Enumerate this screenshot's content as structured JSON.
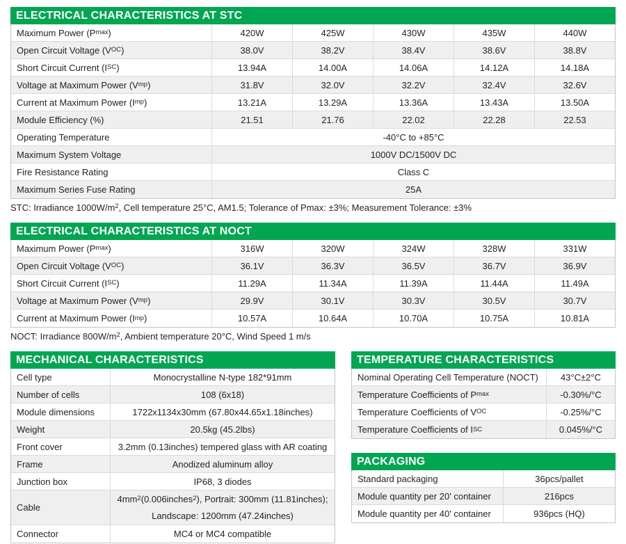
{
  "colors": {
    "header_bg": "#00a651",
    "header_text": "#ffffff",
    "stripe": "#efefef",
    "border": "#c4c4c4",
    "text": "#232323"
  },
  "stc": {
    "title": "ELECTRICAL CHARACTERISTICS AT STC",
    "rows": [
      {
        "label": "Maximum Power (P_{max})",
        "values": [
          "420W",
          "425W",
          "430W",
          "435W",
          "440W"
        ]
      },
      {
        "label": "Open Circuit Voltage (V_{OC})",
        "values": [
          "38.0V",
          "38.2V",
          "38.4V",
          "38.6V",
          "38.8V"
        ]
      },
      {
        "label": "Short Circuit Current (I_{SC})",
        "values": [
          "13.94A",
          "14.00A",
          "14.06A",
          "14.12A",
          "14.18A"
        ]
      },
      {
        "label": "Voltage at Maximum Power (V_{mp})",
        "values": [
          "31.8V",
          "32.0V",
          "32.2V",
          "32.4V",
          "32.6V"
        ]
      },
      {
        "label": "Current at Maximum Power (I_{mp})",
        "values": [
          "13.21A",
          "13.29A",
          "13.36A",
          "13.43A",
          "13.50A"
        ]
      },
      {
        "label": "Module Efficiency (%)",
        "values": [
          "21.51",
          "21.76",
          "22.02",
          "22.28",
          "22.53"
        ]
      }
    ],
    "span_rows": [
      {
        "label": "Operating Temperature",
        "value": "-40°C to +85°C"
      },
      {
        "label": "Maximum System Voltage",
        "value": "1000V DC/1500V DC"
      },
      {
        "label": "Fire Resistance Rating",
        "value": "Class C"
      },
      {
        "label": "Maximum Series Fuse Rating",
        "value": "25A"
      }
    ],
    "note": "STC: Irradiance 1000W/m^{2}, Cell temperature 25°C, AM1.5; Tolerance of Pmax: ±3%; Measurement Tolerance: ±3%"
  },
  "noct": {
    "title": "ELECTRICAL CHARACTERISTICS AT NOCT",
    "rows": [
      {
        "label": "Maximum Power (P_{max})",
        "values": [
          "316W",
          "320W",
          "324W",
          "328W",
          "331W"
        ]
      },
      {
        "label": "Open Circuit Voltage (V_{OC})",
        "values": [
          "36.1V",
          "36.3V",
          "36.5V",
          "36.7V",
          "36.9V"
        ]
      },
      {
        "label": "Short Circuit Current (I_{SC})",
        "values": [
          "11.29A",
          "11.34A",
          "11.39A",
          "11.44A",
          "11.49A"
        ]
      },
      {
        "label": "Voltage at Maximum Power (V_{mp})",
        "values": [
          "29.9V",
          "30.1V",
          "30.3V",
          "30.5V",
          "30.7V"
        ]
      },
      {
        "label": "Current at Maximum Power (I_{mp})",
        "values": [
          "10.57A",
          "10.64A",
          "10.70A",
          "10.75A",
          "10.81A"
        ]
      }
    ],
    "note": "NOCT: Irradiance 800W/m^{2}, Ambient temperature 20°C, Wind Speed 1 m/s"
  },
  "mechanical": {
    "title": "MECHANICAL CHARACTERISTICS",
    "rows": [
      {
        "label": "Cell type",
        "value": "Monocrystalline N-type 182*91mm"
      },
      {
        "label": "Number of cells",
        "value": "108 (6x18)"
      },
      {
        "label": "Module dimensions",
        "value": "1722x1134x30mm (67.80x44.65x1.18inches)"
      },
      {
        "label": "Weight",
        "value": "20.5kg (45.2lbs)"
      },
      {
        "label": "Front cover",
        "value": "3.2mm (0.13inches) tempered glass with AR coating"
      },
      {
        "label": "Frame",
        "value": "Anodized aluminum alloy"
      },
      {
        "label": "Junction box",
        "value": "IP68, 3 diodes"
      },
      {
        "label": "Cable",
        "value": "4mm^{2} (0.006inches^{2}), Portrait: 300mm (11.81inches);",
        "value2": "Landscape: 1200mm (47.24inches)"
      },
      {
        "label": "Connector",
        "value": "MC4 or MC4 compatible"
      }
    ]
  },
  "temperature": {
    "title": "TEMPERATURE CHARACTERISTICS",
    "rows": [
      {
        "label": "Nominal Operating Cell Temperature (NOCT)",
        "value": "43°C±2°C"
      },
      {
        "label": "Temperature Coefficients of P_{max}",
        "value": "-0.30%/°C"
      },
      {
        "label": "Temperature Coefficients of V_{OC}",
        "value": "-0.25%/°C"
      },
      {
        "label": "Temperature Coefficients of I_{SC}",
        "value": "0.045%/°C"
      }
    ]
  },
  "packaging": {
    "title": "PACKAGING",
    "rows": [
      {
        "label": "Standard packaging",
        "value": "36pcs/pallet"
      },
      {
        "label": "Module quantity per 20' container",
        "value": "216pcs"
      },
      {
        "label": "Module quantity per 40' container",
        "value": "936pcs (HQ)"
      }
    ]
  }
}
